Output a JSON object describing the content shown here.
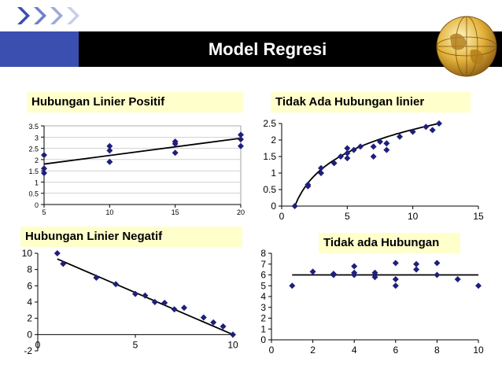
{
  "slide": {
    "title": "Model Regresi",
    "labels": {
      "pos": "Hubungan Linier Positif",
      "none_curve": "Tidak Ada Hubungan linier",
      "neg": "Hubungan Linier Negatif",
      "none": "Tidak ada Hubungan"
    },
    "colors": {
      "titlebar": "#000000",
      "accent": "#3a4fb0",
      "label_bg": "#ffffcc",
      "marker": "#1f1f7a"
    },
    "icons": [
      "chevron-right-icon",
      "chevron-right-icon",
      "chevron-right-icon",
      "chevron-right-icon",
      "globe-icon"
    ]
  },
  "chart_data": [
    {
      "type": "scatter",
      "xlim": [
        5,
        20
      ],
      "ylim": [
        0,
        3.5
      ],
      "xticks": [
        "5",
        "10",
        "15",
        "20"
      ],
      "yticks": [
        "0",
        "0.5",
        "1",
        "1.5",
        "2",
        "2.5",
        "3",
        "3.5"
      ],
      "points": [
        [
          5,
          2.2
        ],
        [
          5,
          1.6
        ],
        [
          5,
          1.4
        ],
        [
          10,
          2.6
        ],
        [
          10,
          2.4
        ],
        [
          10,
          1.9
        ],
        [
          15,
          2.8
        ],
        [
          15,
          2.7
        ],
        [
          15,
          2.3
        ],
        [
          20,
          3.1
        ],
        [
          20,
          2.9
        ],
        [
          20,
          2.6
        ]
      ],
      "line": [
        [
          5,
          1.8
        ],
        [
          20,
          2.95
        ]
      ],
      "grid": true
    },
    {
      "type": "scatter",
      "xlim": [
        0,
        15
      ],
      "ylim": [
        0,
        2.5
      ],
      "xticks": [
        "0",
        "5",
        "10",
        "15"
      ],
      "yticks": [
        "0",
        "0.5",
        "1",
        "1.5",
        "2",
        "2.5"
      ],
      "points": [
        [
          1,
          0
        ],
        [
          2,
          0.6
        ],
        [
          2,
          0.65
        ],
        [
          3,
          1
        ],
        [
          3,
          1.15
        ],
        [
          4,
          1.3
        ],
        [
          4.5,
          1.5
        ],
        [
          5,
          1.45
        ],
        [
          5,
          1.6
        ],
        [
          5.5,
          1.7
        ],
        [
          5,
          1.75
        ],
        [
          6,
          1.8
        ],
        [
          7,
          1.5
        ],
        [
          7,
          1.8
        ],
        [
          7.5,
          1.95
        ],
        [
          8,
          1.7
        ],
        [
          8,
          1.9
        ],
        [
          9,
          2.1
        ],
        [
          10,
          2.25
        ],
        [
          11,
          2.4
        ],
        [
          11.5,
          2.3
        ],
        [
          12,
          2.5
        ]
      ],
      "curve": "log",
      "grid": false
    },
    {
      "type": "scatter",
      "xlim": [
        0,
        10
      ],
      "ylim": [
        -2,
        10
      ],
      "xticks": [
        "0",
        "5",
        "10"
      ],
      "yticks": [
        "-2",
        "0",
        "2",
        "4",
        "6",
        "8",
        "10"
      ],
      "points": [
        [
          1,
          10
        ],
        [
          1.3,
          8.7
        ],
        [
          3,
          7
        ],
        [
          4,
          6.2
        ],
        [
          5,
          5
        ],
        [
          5.5,
          4.8
        ],
        [
          6,
          4
        ],
        [
          6.5,
          3.9
        ],
        [
          7,
          3.1
        ],
        [
          7.5,
          3.3
        ],
        [
          8.5,
          2.1
        ],
        [
          9,
          1.5
        ],
        [
          9.5,
          1
        ],
        [
          10,
          0
        ]
      ],
      "line": [
        [
          1,
          9.3
        ],
        [
          10,
          0
        ]
      ],
      "grid": false
    },
    {
      "type": "scatter",
      "xlim": [
        0,
        10
      ],
      "ylim": [
        0,
        8
      ],
      "xticks": [
        "0",
        "2",
        "4",
        "6",
        "8",
        "10"
      ],
      "yticks": [
        "0",
        "1",
        "2",
        "3",
        "4",
        "5",
        "6",
        "7",
        "8"
      ],
      "points": [
        [
          1,
          5
        ],
        [
          2,
          6.3
        ],
        [
          3,
          6
        ],
        [
          3,
          6.1
        ],
        [
          4,
          6.8
        ],
        [
          4,
          6
        ],
        [
          4,
          6.2
        ],
        [
          5,
          6.2
        ],
        [
          5,
          5.8
        ],
        [
          6,
          7.1
        ],
        [
          6,
          5.6
        ],
        [
          6,
          5
        ],
        [
          7,
          7
        ],
        [
          7,
          6.5
        ],
        [
          8,
          7.1
        ],
        [
          8,
          6
        ],
        [
          9,
          5.6
        ],
        [
          10,
          5
        ]
      ],
      "line": [
        [
          1,
          6
        ],
        [
          10,
          6
        ]
      ],
      "grid": false
    }
  ]
}
